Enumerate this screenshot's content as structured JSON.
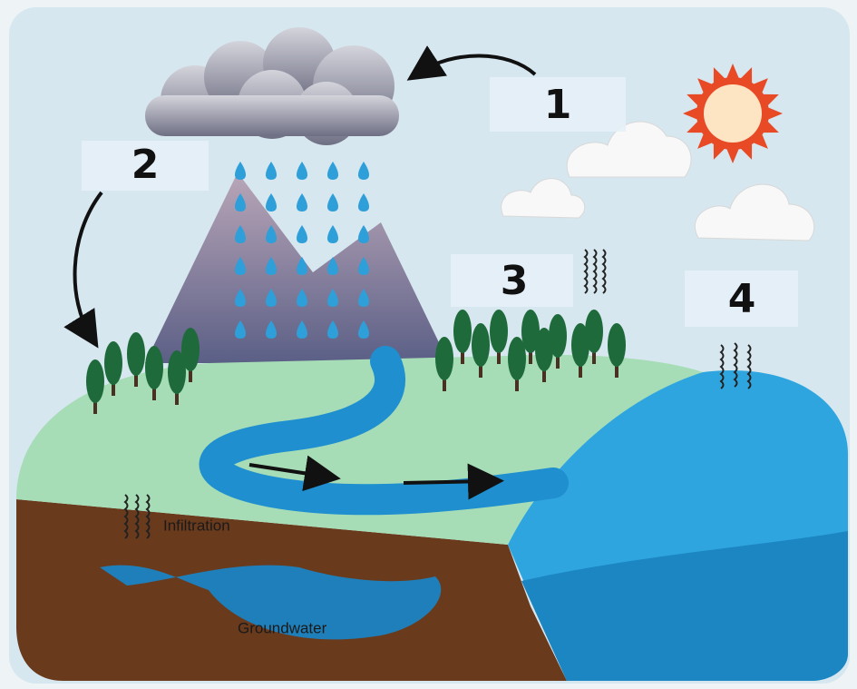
{
  "markers": [
    "1",
    "2",
    "3",
    "4"
  ],
  "annotations": {
    "infiltration": "Infiltration",
    "groundwater": "Groundwater"
  }
}
